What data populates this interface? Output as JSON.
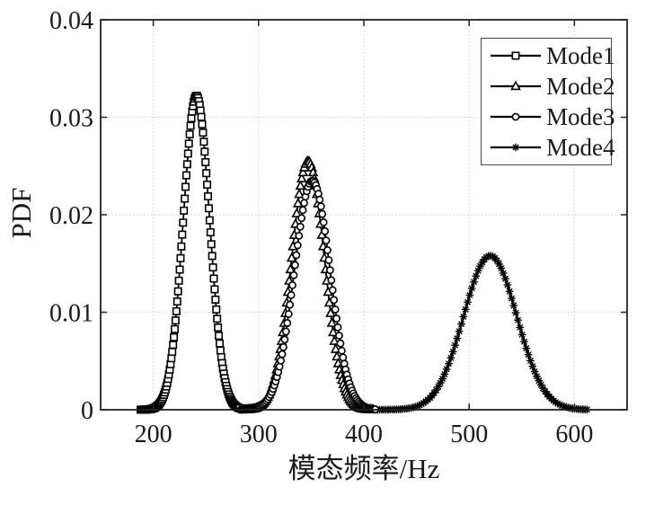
{
  "figure": {
    "background": "#ffffff"
  },
  "colors": {
    "line": "#000000",
    "grid": "#c9c9c9",
    "axis": "#222222",
    "text": "#1a1a1a",
    "legend_border": "#4a4a4a"
  },
  "chart_data": {
    "type": "line",
    "title": "",
    "xlabel": "模态频率/Hz",
    "ylabel": "PDF",
    "x_range": [
      150,
      650
    ],
    "y_range": [
      0,
      0.04
    ],
    "grid": "dotted",
    "legend_position": "top-right",
    "x_ticks": {
      "values": [
        200,
        300,
        400,
        500,
        600
      ],
      "labels": [
        "200",
        "300",
        "400",
        "500",
        "600"
      ]
    },
    "y_ticks": {
      "values": [
        0,
        0.01,
        0.02,
        0.03,
        0.04
      ],
      "labels": [
        "0",
        "0.01",
        "0.02",
        "0.03",
        "0.04"
      ]
    },
    "series": [
      {
        "name": "Mode1",
        "marker": "square",
        "color": "#000000",
        "distribution": "gaussian",
        "mean_hz": 241,
        "sigma_hz": 12.5,
        "peak_pdf": 0.0322,
        "x_start": 188,
        "x_end": 282,
        "n_samples": 120
      },
      {
        "name": "Mode2",
        "marker": "triangle",
        "color": "#000000",
        "distribution": "gaussian",
        "mean_hz": 347,
        "sigma_hz": 15.6,
        "peak_pdf": 0.0255,
        "x_start": 285,
        "x_end": 409,
        "n_samples": 105
      },
      {
        "name": "Mode3",
        "marker": "circle",
        "color": "#000000",
        "distribution": "gaussian",
        "mean_hz": 351,
        "sigma_hz": 17.0,
        "peak_pdf": 0.0235,
        "x_start": 283,
        "x_end": 411,
        "n_samples": 105
      },
      {
        "name": "Mode4",
        "marker": "asterisk",
        "color": "#000000",
        "distribution": "gaussian",
        "mean_hz": 520,
        "sigma_hz": 25.3,
        "peak_pdf": 0.0158,
        "x_start": 415,
        "x_end": 612,
        "n_samples": 100
      }
    ]
  }
}
